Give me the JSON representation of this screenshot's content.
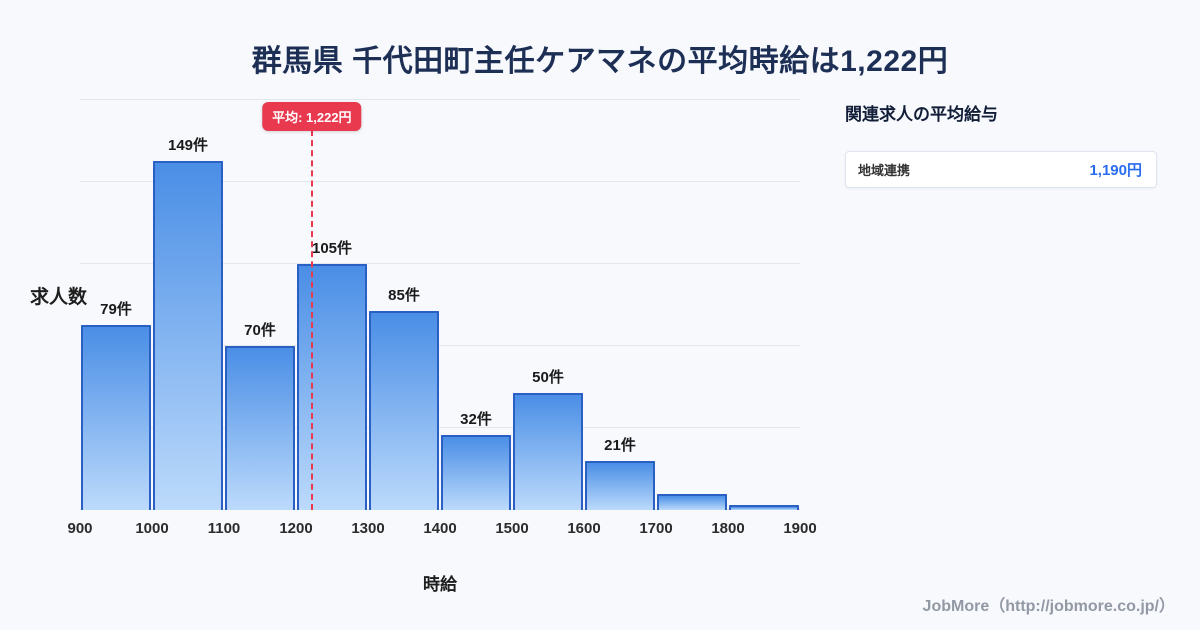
{
  "title": "群馬県 千代田町主任ケアマネの平均時給は1,222円",
  "theme": {
    "background": "#f7f9fd",
    "title_color": "#1d2f55",
    "accent_blue": "#2a6df0",
    "average_red": "#e8394e",
    "bar_fill_top": "#4a8ee6",
    "bar_fill_bottom": "#bcdafb",
    "bar_border": "#2a5fc4"
  },
  "chart_data": {
    "type": "bar",
    "title": "群馬県 千代田町主任ケアマネの平均時給は1,222円",
    "xlabel": "時給",
    "ylabel": "求人数",
    "bin_edges": [
      900,
      1000,
      1100,
      1200,
      1300,
      1400,
      1500,
      1600,
      1700,
      1800,
      1900
    ],
    "values": [
      79,
      149,
      70,
      105,
      85,
      32,
      50,
      21,
      7,
      2
    ],
    "bar_labels": [
      "79件",
      "149件",
      "70件",
      "105件",
      "85件",
      "32件",
      "50件",
      "21件",
      "",
      ""
    ],
    "unit": "件",
    "ylim": [
      0,
      175
    ],
    "grid_step": 35,
    "grid": true,
    "legend": "none",
    "average": {
      "value": 1222,
      "label": "平均: 1,222円"
    }
  },
  "side_panel": {
    "title": "関連求人の平均給与",
    "items": [
      {
        "label": "地域連携",
        "value": "1,190円"
      }
    ]
  },
  "footer": {
    "credit": "JobMore（http://jobmore.co.jp/）"
  }
}
